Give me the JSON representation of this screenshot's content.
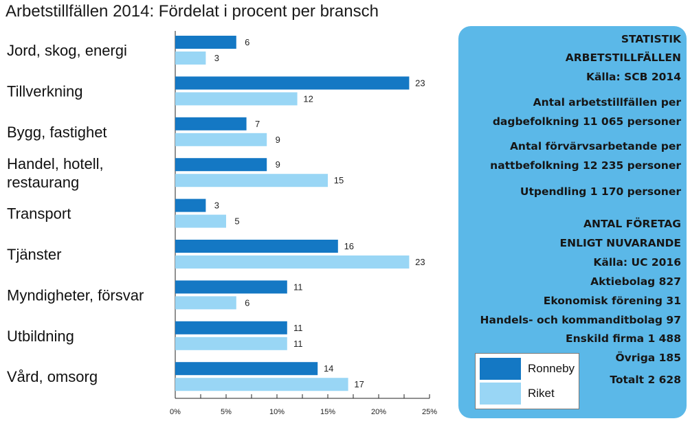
{
  "colors": {
    "ronneby": "#1478c4",
    "riket": "#99d6f5",
    "panel": "#5bb8e8"
  },
  "chart_data": {
    "type": "bar",
    "orientation": "horizontal",
    "title": "Arbetstillfällen 2014: Fördelat i procent per bransch",
    "categories": [
      [
        "Jord, skog, energi"
      ],
      [
        "Tillverkning"
      ],
      [
        "Bygg, fastighet"
      ],
      [
        "Handel, hotell,",
        "restaurang"
      ],
      [
        "Transport"
      ],
      [
        "Tjänster"
      ],
      [
        "Myndigheter, försvar"
      ],
      [
        "Utbildning"
      ],
      [
        "Vård, omsorg"
      ]
    ],
    "series": [
      {
        "name": "Ronneby",
        "values": [
          6,
          23,
          7,
          9,
          3,
          16,
          11,
          11,
          14
        ]
      },
      {
        "name": "Riket",
        "values": [
          3,
          12,
          9,
          15,
          5,
          23,
          6,
          11,
          17
        ]
      }
    ],
    "xlim": [
      0,
      25
    ],
    "xticks": [
      "0%",
      "5%",
      "10%",
      "15%",
      "20%",
      "25%"
    ],
    "xlabel": "",
    "ylabel": "",
    "grid": false,
    "legend_position": "inside stats panel, bottom-left"
  },
  "stats": [
    "STATISTIK",
    "ARBETSTILLFÄLLEN",
    "Källa: SCB 2014",
    "Antal arbetstillfällen per",
    "dagbefolkning 11 065 personer",
    "Antal förvärvsarbetande per",
    "nattbefolkning 12 235 personer",
    "Utpendling 1 170 personer",
    "ANTAL FÖRETAG",
    "ENLIGT NUVARANDE",
    "Källa: UC 2016",
    "Aktiebolag  827",
    "Ekonomisk förening 31",
    "Handels- och kommanditbolag 97",
    "Enskild firma 1 488",
    "Övriga 185",
    "Totalt 2 628"
  ]
}
